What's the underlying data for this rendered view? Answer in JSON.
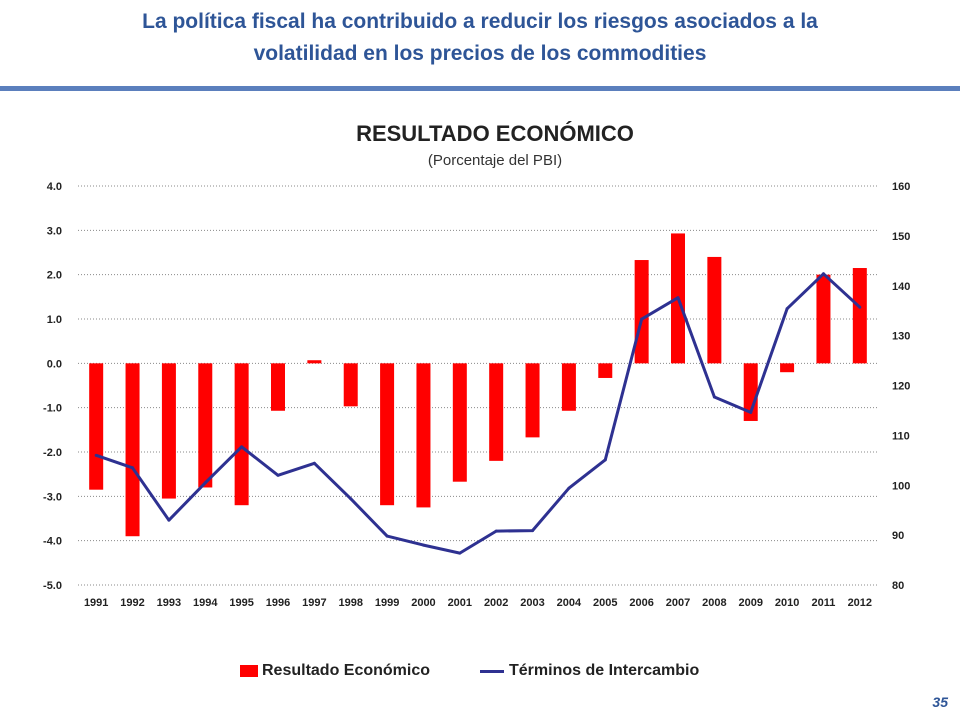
{
  "slide": {
    "title_line1": "La política fiscal ha contribuido a reducir los riesgos asociados a la",
    "title_line2": "volatilidad en los precios de los commodities",
    "page_number": "35"
  },
  "colors": {
    "title": "#2e5597",
    "rule": "#5b7fbd",
    "bar": "#ff0000",
    "line": "#2e3191"
  },
  "chart_data": {
    "type": "bar+line",
    "title": "RESULTADO ECONÓMICO",
    "subtitle": "(Porcentaje del PBI)",
    "categories": [
      "1991",
      "1992",
      "1993",
      "1994",
      "1995",
      "1996",
      "1997",
      "1998",
      "1999",
      "2000",
      "2001",
      "2002",
      "2003",
      "2004",
      "2005",
      "2006",
      "2007",
      "2008",
      "2009",
      "2010",
      "2011",
      "2012"
    ],
    "series": [
      {
        "name": "Resultado Económico",
        "type": "bar",
        "axis": "left",
        "values": [
          -2.85,
          -3.9,
          -3.05,
          -2.8,
          -3.2,
          -1.07,
          0.07,
          -0.97,
          -3.2,
          -3.25,
          -2.67,
          -2.2,
          -1.67,
          -1.07,
          -0.33,
          2.33,
          2.93,
          2.4,
          -1.3,
          -0.2,
          2.0,
          2.15
        ]
      },
      {
        "name": "Términos de Intercambio",
        "type": "line",
        "axis": "right",
        "values": [
          106,
          103.5,
          93,
          100.5,
          107.7,
          102,
          104.4,
          97.3,
          89.8,
          88,
          86.4,
          90.8,
          90.9,
          99.4,
          105.1,
          133.3,
          137.6,
          117.7,
          114.6,
          135.4,
          142.4,
          135.7
        ]
      }
    ],
    "left_axis": {
      "ylim": [
        -5.0,
        4.0
      ],
      "ticks": [
        "4.0",
        "3.0",
        "2.0",
        "1.0",
        "0.0",
        "-1.0",
        "-2.0",
        "-3.0",
        "-4.0",
        "-5.0"
      ],
      "tick_values": [
        4,
        3,
        2,
        1,
        0,
        -1,
        -2,
        -3,
        -4,
        -5
      ]
    },
    "right_axis": {
      "ylim": [
        80,
        160
      ],
      "ticks": [
        "160",
        "150",
        "140",
        "130",
        "120",
        "110",
        "100",
        "90",
        "80"
      ],
      "tick_values": [
        160,
        150,
        140,
        130,
        120,
        110,
        100,
        90,
        80
      ]
    },
    "grid": "dotted-horizontal",
    "legend": "bottom",
    "legend_labels": [
      "Resultado Económico",
      "Términos de Intercambio"
    ]
  }
}
